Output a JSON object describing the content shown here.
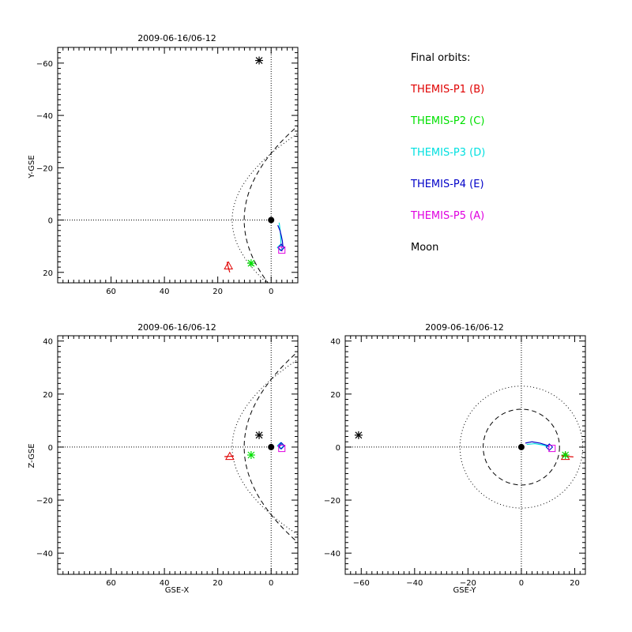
{
  "legend": {
    "heading": "Final orbits:",
    "items": [
      {
        "label": "THEMIS-P1 (B)",
        "color": "#e00000"
      },
      {
        "label": "THEMIS-P2 (C)",
        "color": "#00e000"
      },
      {
        "label": "THEMIS-P3 (D)",
        "color": "#00e0e0"
      },
      {
        "label": "THEMIS-P4 (E)",
        "color": "#0000c8"
      },
      {
        "label": "THEMIS-P5 (A)",
        "color": "#e000e0"
      },
      {
        "label": "Moon",
        "color": "#000000"
      }
    ]
  },
  "chart_data": [
    {
      "type": "scatter",
      "title": "2009-06-16/06-12",
      "xlabel": "",
      "ylabel": "Y-GSE",
      "xlim": [
        80,
        -10
      ],
      "ylim": [
        24,
        -66
      ],
      "xticks": [
        60,
        40,
        20,
        0
      ],
      "yticks": [
        -60,
        -40,
        -20,
        0,
        20
      ],
      "reference_lines": {
        "x": 0,
        "y": 0
      },
      "earth": [
        0,
        0
      ],
      "points": [
        {
          "name": "THEMIS-P1 (B)",
          "x": 16,
          "y": 17.5,
          "marker": "triangle",
          "color": "#e00000"
        },
        {
          "name": "THEMIS-P2 (C)",
          "x": 7.5,
          "y": 16.5,
          "marker": "asterisk",
          "color": "#00e000"
        },
        {
          "name": "THEMIS-P3 (D)",
          "x": -3.5,
          "y": 10.5,
          "marker": "diamond",
          "color": "#00e0e0"
        },
        {
          "name": "THEMIS-P4 (E)",
          "x": -3.8,
          "y": 10.5,
          "marker": "diamond",
          "color": "#0000c8"
        },
        {
          "name": "THEMIS-P5 (A)",
          "x": -4,
          "y": 11.5,
          "marker": "square",
          "color": "#e000e0"
        },
        {
          "name": "Moon",
          "x": 4.5,
          "y": -61,
          "marker": "asterisk",
          "color": "#000000"
        }
      ],
      "orbits": [
        {
          "name": "THEMIS-P1 (B)",
          "color": "#e00000",
          "x": [
            16.5,
            16.2,
            15.8,
            15.5
          ],
          "y": [
            16,
            17.5,
            19,
            20
          ]
        },
        {
          "name": "THEMIS-P2 (C)",
          "color": "#00e000",
          "x": [
            8.5,
            7.5,
            6.8
          ],
          "y": [
            15.5,
            16.5,
            17.5
          ]
        },
        {
          "name": "THEMIS-P3 (D)",
          "color": "#00e0e0",
          "x": [
            -3,
            -3.4,
            -3.6,
            -3.7
          ],
          "y": [
            1,
            4,
            7,
            10
          ]
        },
        {
          "name": "THEMIS-P4 (E)",
          "color": "#0000c8",
          "x": [
            -2.5,
            -3.3,
            -3.8,
            -4.2,
            -4.4
          ],
          "y": [
            2,
            4,
            6,
            8,
            10
          ]
        },
        {
          "name": "THEMIS-P5 (A)",
          "color": "#e000e0",
          "x": [
            -3.8,
            -4,
            -4.1
          ],
          "y": [
            9,
            10.5,
            12
          ]
        }
      ],
      "boundaries": [
        {
          "style": "dotted",
          "x_nose": 14.6,
          "flare": 0.9
        },
        {
          "style": "dashed",
          "x_nose": 10.1,
          "flare": 0.62
        }
      ]
    },
    {
      "type": "scatter",
      "title": "2009-06-16/06-12",
      "xlabel": "GSE-X",
      "ylabel": "Z-GSE",
      "xlim": [
        80,
        -10
      ],
      "ylim": [
        -48,
        42
      ],
      "xticks": [
        60,
        40,
        20,
        0
      ],
      "yticks": [
        -40,
        -20,
        0,
        20,
        40
      ],
      "reference_lines": {
        "x": 0,
        "y": 0
      },
      "earth": [
        0,
        0
      ],
      "points": [
        {
          "name": "THEMIS-P1 (B)",
          "x": 15.5,
          "y": -3.5,
          "marker": "triangle",
          "color": "#e00000"
        },
        {
          "name": "THEMIS-P2 (C)",
          "x": 7.5,
          "y": -3,
          "marker": "asterisk",
          "color": "#00e000"
        },
        {
          "name": "THEMIS-P3 (D)",
          "x": -3.5,
          "y": 0.5,
          "marker": "diamond",
          "color": "#00e0e0"
        },
        {
          "name": "THEMIS-P4 (E)",
          "x": -3.8,
          "y": 0.5,
          "marker": "diamond",
          "color": "#0000c8"
        },
        {
          "name": "THEMIS-P5 (A)",
          "x": -4,
          "y": -0.5,
          "marker": "square",
          "color": "#e000e0"
        },
        {
          "name": "Moon",
          "x": 4.5,
          "y": 4.5,
          "marker": "asterisk",
          "color": "#000000"
        }
      ],
      "orbits": [
        {
          "name": "THEMIS-P1 (B)",
          "color": "#e00000",
          "x": [
            17.5,
            15.5,
            14
          ],
          "y": [
            -3.6,
            -3.5,
            -3.4
          ]
        },
        {
          "name": "THEMIS-P4 (E)",
          "color": "#0000c8",
          "x": [
            -2.8,
            -3.4,
            -3.9
          ],
          "y": [
            0,
            0.6,
            1.2
          ]
        }
      ],
      "boundaries": [
        {
          "style": "dotted",
          "x_nose": 14.6,
          "flare": 0.9
        },
        {
          "style": "dashed",
          "x_nose": 10.1,
          "flare": 0.62
        }
      ]
    },
    {
      "type": "scatter",
      "title": "2009-06-16/06-12",
      "xlabel": "GSE-Y",
      "ylabel": "",
      "xlim": [
        -66,
        24
      ],
      "ylim": [
        -48,
        42
      ],
      "xticks": [
        -60,
        -40,
        -20,
        0,
        20
      ],
      "yticks": [
        -40,
        -20,
        0,
        20,
        40
      ],
      "reference_lines": {
        "x": 0,
        "y": 0
      },
      "earth": [
        0,
        0
      ],
      "circles": [
        {
          "style": "dotted",
          "r": 23
        },
        {
          "style": "dashed",
          "r": 14.3
        }
      ],
      "points": [
        {
          "name": "THEMIS-P1 (B)",
          "x": 16.5,
          "y": -3.5,
          "marker": "triangle",
          "color": "#e00000"
        },
        {
          "name": "THEMIS-P2 (C)",
          "x": 16.5,
          "y": -3,
          "marker": "asterisk",
          "color": "#00e000"
        },
        {
          "name": "THEMIS-P3 (D)",
          "x": 10.5,
          "y": 0,
          "marker": "diamond",
          "color": "#00e0e0"
        },
        {
          "name": "THEMIS-P4 (E)",
          "x": 10.5,
          "y": 0,
          "marker": "diamond",
          "color": "#0000c8"
        },
        {
          "name": "THEMIS-P5 (A)",
          "x": 11.5,
          "y": -0.5,
          "marker": "square",
          "color": "#e000e0"
        },
        {
          "name": "Moon",
          "x": -61,
          "y": 4.5,
          "marker": "asterisk",
          "color": "#000000"
        }
      ],
      "orbits": [
        {
          "name": "THEMIS-P4 (E)",
          "color": "#0000c8",
          "x": [
            1.5,
            4,
            7,
            9.5,
            10.5
          ],
          "y": [
            1.5,
            2,
            1.5,
            0.7,
            0
          ]
        },
        {
          "name": "THEMIS-P3 (D)",
          "color": "#00e0e0",
          "x": [
            2,
            5,
            8,
            10
          ],
          "y": [
            1,
            1.3,
            0.8,
            0.2
          ]
        },
        {
          "name": "THEMIS-P1 (B)",
          "color": "#e00000",
          "x": [
            15,
            17,
            19.5
          ],
          "y": [
            -3.3,
            -3.5,
            -3.7
          ]
        }
      ]
    }
  ]
}
